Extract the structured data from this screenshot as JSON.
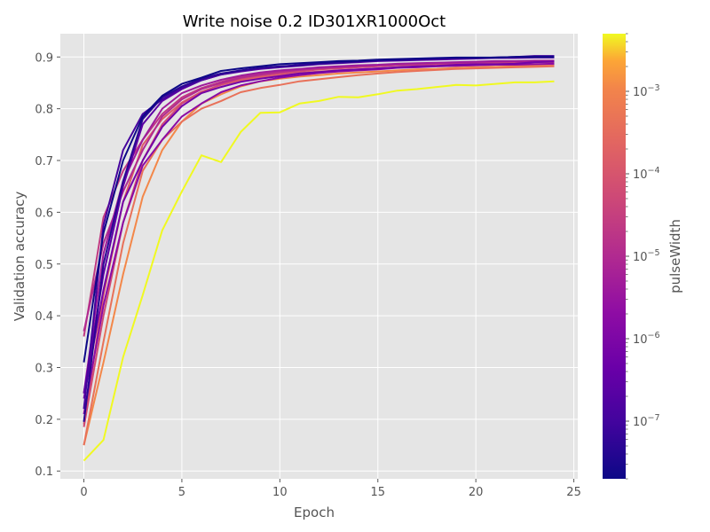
{
  "chart_data": {
    "type": "line",
    "title": "Write noise 0.2 ID301XR1000Oct",
    "xlabel": "Epoch",
    "ylabel": "Validation accuracy",
    "xlim": [
      -1.2,
      25.2
    ],
    "ylim": [
      0.085,
      0.945
    ],
    "xticks": [
      0,
      5,
      10,
      15,
      20,
      25
    ],
    "yticks": [
      0.1,
      0.2,
      0.3,
      0.4,
      0.5,
      0.6,
      0.7,
      0.8,
      0.9
    ],
    "grid": true,
    "style": "ggplot",
    "colormap": "plasma",
    "colorbar": {
      "label": "pulseWidth",
      "scale": "log",
      "range": [
        2e-08,
        0.005
      ],
      "ticks": [
        {
          "value": 1e-07,
          "mantissa": "10",
          "exp": "−7"
        },
        {
          "value": 1e-06,
          "mantissa": "10",
          "exp": "−6"
        },
        {
          "value": 1e-05,
          "mantissa": "10",
          "exp": "−5"
        },
        {
          "value": 0.0001,
          "mantissa": "10",
          "exp": "−4"
        },
        {
          "value": 0.001,
          "mantissa": "10",
          "exp": "−3"
        }
      ]
    },
    "x": [
      0,
      1,
      2,
      3,
      4,
      5,
      6,
      7,
      8,
      9,
      10,
      11,
      12,
      13,
      14,
      15,
      16,
      17,
      18,
      19,
      20,
      21,
      22,
      23,
      24
    ],
    "series": [
      {
        "color_value": 0.0,
        "values": [
          0.31,
          0.56,
          0.7,
          0.785,
          0.825,
          0.848,
          0.86,
          0.873,
          0.878,
          0.882,
          0.886,
          0.888,
          0.89,
          0.892,
          0.893,
          0.895,
          0.896,
          0.897,
          0.898,
          0.899,
          0.899,
          0.899,
          0.9,
          0.9,
          0.9
        ]
      },
      {
        "color_value": 0.07,
        "values": [
          0.195,
          0.5,
          0.66,
          0.78,
          0.822,
          0.843,
          0.858,
          0.868,
          0.874,
          0.879,
          0.882,
          0.884,
          0.887,
          0.889,
          0.891,
          0.893,
          0.894,
          0.895,
          0.897,
          0.898,
          0.898,
          0.899,
          0.9,
          0.901,
          0.901
        ]
      },
      {
        "color_value": 0.14,
        "values": [
          0.22,
          0.575,
          0.72,
          0.79,
          0.818,
          0.84,
          0.855,
          0.866,
          0.873,
          0.878,
          0.881,
          0.885,
          0.888,
          0.89,
          0.892,
          0.893,
          0.894,
          0.895,
          0.896,
          0.897,
          0.898,
          0.899,
          0.9,
          0.902,
          0.902
        ]
      },
      {
        "color_value": 0.21,
        "values": [
          0.25,
          0.48,
          0.65,
          0.77,
          0.815,
          0.838,
          0.855,
          0.866,
          0.872,
          0.877,
          0.88,
          0.883,
          0.886,
          0.888,
          0.89,
          0.892,
          0.893,
          0.894,
          0.895,
          0.896,
          0.897,
          0.898,
          0.898,
          0.899,
          0.899
        ]
      },
      {
        "color_value": 0.28,
        "values": [
          0.24,
          0.45,
          0.62,
          0.7,
          0.765,
          0.805,
          0.83,
          0.842,
          0.852,
          0.858,
          0.863,
          0.868,
          0.871,
          0.874,
          0.876,
          0.878,
          0.88,
          0.882,
          0.883,
          0.885,
          0.886,
          0.886,
          0.887,
          0.89,
          0.891
        ]
      },
      {
        "color_value": 0.36,
        "values": [
          0.21,
          0.42,
          0.58,
          0.69,
          0.74,
          0.785,
          0.81,
          0.832,
          0.845,
          0.853,
          0.86,
          0.865,
          0.869,
          0.872,
          0.874,
          0.876,
          0.879,
          0.88,
          0.882,
          0.883,
          0.884,
          0.885,
          0.885,
          0.886,
          0.887
        ]
      },
      {
        "color_value": 0.43,
        "values": [
          0.25,
          0.52,
          0.66,
          0.74,
          0.8,
          0.83,
          0.845,
          0.856,
          0.864,
          0.87,
          0.874,
          0.877,
          0.88,
          0.882,
          0.884,
          0.885,
          0.887,
          0.888,
          0.889,
          0.89,
          0.891,
          0.892,
          0.892,
          0.893,
          0.893
        ]
      },
      {
        "color_value": 0.5,
        "values": [
          0.37,
          0.54,
          0.64,
          0.72,
          0.785,
          0.818,
          0.838,
          0.85,
          0.86,
          0.866,
          0.871,
          0.875,
          0.878,
          0.88,
          0.882,
          0.884,
          0.885,
          0.887,
          0.888,
          0.889,
          0.89,
          0.891,
          0.891,
          0.892,
          0.892
        ]
      },
      {
        "color_value": 0.57,
        "values": [
          0.36,
          0.59,
          0.68,
          0.74,
          0.79,
          0.822,
          0.84,
          0.852,
          0.862,
          0.868,
          0.872,
          0.876,
          0.879,
          0.881,
          0.883,
          0.884,
          0.886,
          0.887,
          0.888,
          0.889,
          0.89,
          0.89,
          0.891,
          0.892,
          0.892
        ]
      },
      {
        "color_value": 0.64,
        "values": [
          0.185,
          0.4,
          0.58,
          0.7,
          0.77,
          0.81,
          0.832,
          0.847,
          0.858,
          0.864,
          0.868,
          0.872,
          0.876,
          0.878,
          0.88,
          0.882,
          0.884,
          0.885,
          0.886,
          0.887,
          0.888,
          0.889,
          0.889,
          0.89,
          0.89
        ]
      },
      {
        "color_value": 0.72,
        "values": [
          0.19,
          0.44,
          0.62,
          0.73,
          0.78,
          0.812,
          0.833,
          0.846,
          0.855,
          0.861,
          0.865,
          0.869,
          0.872,
          0.874,
          0.876,
          0.878,
          0.88,
          0.881,
          0.882,
          0.883,
          0.884,
          0.885,
          0.885,
          0.886,
          0.886
        ]
      },
      {
        "color_value": 0.8,
        "values": [
          0.15,
          0.35,
          0.54,
          0.68,
          0.74,
          0.775,
          0.8,
          0.815,
          0.832,
          0.84,
          0.846,
          0.853,
          0.857,
          0.861,
          0.865,
          0.868,
          0.871,
          0.873,
          0.875,
          0.877,
          0.878,
          0.879,
          0.88,
          0.881,
          0.882
        ]
      },
      {
        "color_value": 0.88,
        "values": [
          0.15,
          0.31,
          0.48,
          0.63,
          0.72,
          0.775,
          0.81,
          0.828,
          0.843,
          0.853,
          0.858,
          0.862,
          0.865,
          0.868,
          0.87,
          0.872,
          0.874,
          0.876,
          0.877,
          0.879,
          0.88,
          0.881,
          0.882,
          0.883,
          0.883
        ]
      },
      {
        "color_value": 1.0,
        "values": [
          0.12,
          0.16,
          0.32,
          0.44,
          0.565,
          0.64,
          0.71,
          0.697,
          0.755,
          0.792,
          0.793,
          0.81,
          0.815,
          0.823,
          0.822,
          0.828,
          0.835,
          0.838,
          0.842,
          0.846,
          0.845,
          0.848,
          0.851,
          0.851,
          0.853
        ]
      }
    ]
  }
}
